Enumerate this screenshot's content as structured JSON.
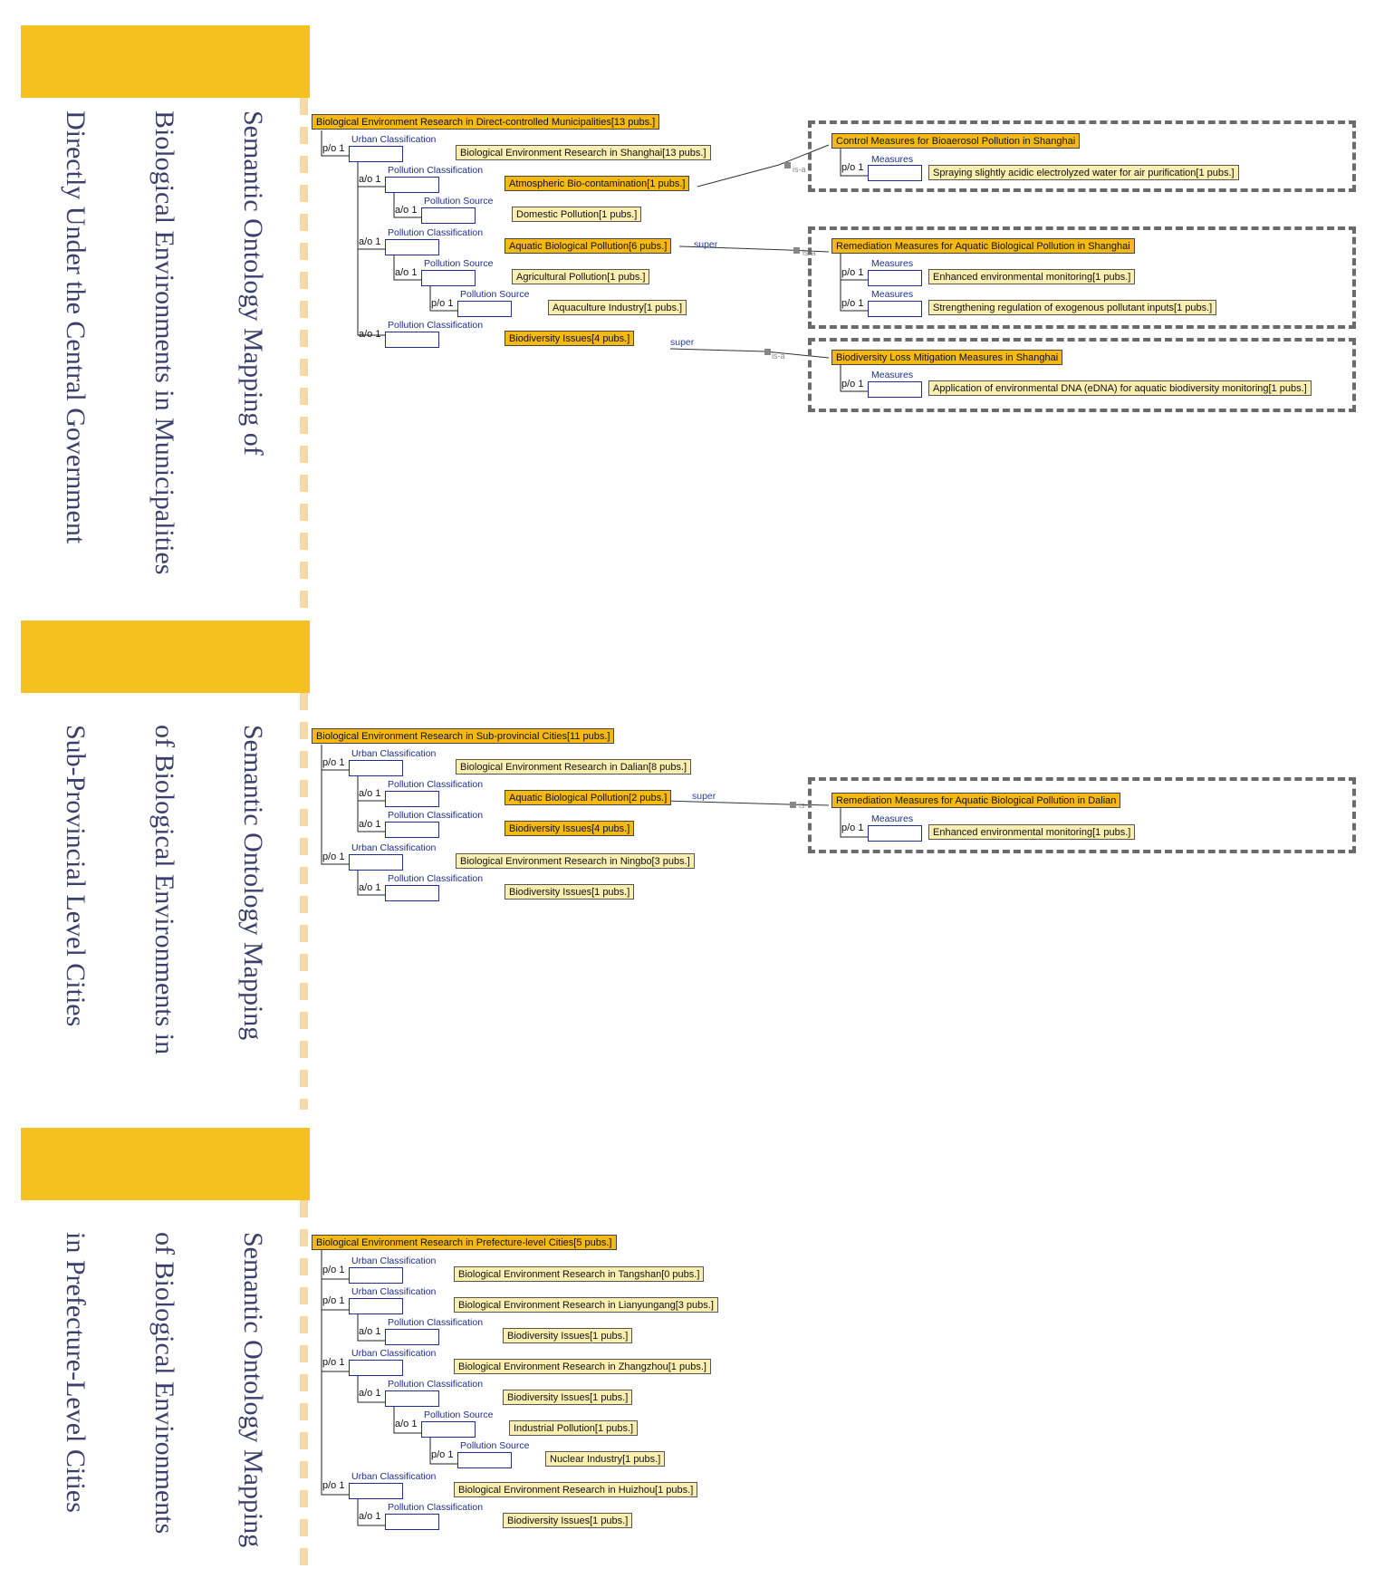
{
  "sections": [
    {
      "title_lines": [
        "Semantic Ontology Mapping of",
        "Biological Environments in Municipalities",
        "Directly Under the Central Government"
      ],
      "root": "Biological Environment Research in Direct-controlled Municipalities[13 pubs.]"
    },
    {
      "title_lines": [
        "Semantic Ontology Mapping",
        "of Biological Environments in",
        "Sub-Provincial Level Cities"
      ],
      "root": "Biological Environment Research in Sub-provincial Cities[11 pubs.]"
    },
    {
      "title_lines": [
        "Semantic Ontology Mapping",
        "of Biological Environments",
        "in Prefecture-Level Cities"
      ],
      "root": "Biological Environment Research in Prefecture-level Cities[5 pubs.]"
    }
  ],
  "labels": {
    "urban": "Urban Classification",
    "pollution_class": "Pollution Classification",
    "pollution_source": "Pollution Source",
    "measures": "Measures",
    "po": "p/o 1",
    "ao": "a/o 1",
    "super": "super",
    "isa": "is-a"
  },
  "nodes": {
    "shanghai": "Biological Environment Research in Shanghai[13 pubs.]",
    "atmos": "Atmospheric Bio-contamination[1 pubs.]",
    "domestic": "Domestic Pollution[1 pubs.]",
    "aquatic6": "Aquatic Biological Pollution[6 pubs.]",
    "agri": "Agricultural Pollution[1 pubs.]",
    "aquaculture": "Aquaculture Industry[1 pubs.]",
    "biod4": "Biodiversity Issues[4 pubs.]",
    "control": "Control Measures for Bioaerosol Pollution in Shanghai",
    "spraying": "Spraying slightly acidic electrolyzed water for air purification[1 pubs.]",
    "remed_sh": "Remediation Measures for Aquatic Biological Pollution in Shanghai",
    "enhanced": "Enhanced environmental monitoring[1 pubs.]",
    "strength": "Strengthening regulation of exogenous pollutant inputs[1 pubs.]",
    "biodloss": "Biodiversity Loss Mitigation Measures in Shanghai",
    "edna": "Application of environmental DNA (eDNA) for aquatic biodiversity monitoring[1 pubs.]",
    "dalian": "Biological Environment Research in Dalian[8 pubs.]",
    "aquatic2": "Aquatic Biological Pollution[2 pubs.]",
    "biod4b": "Biodiversity Issues[4 pubs.]",
    "ningbo": "Biological Environment Research in Ningbo[3 pubs.]",
    "biod1a": "Biodiversity Issues[1 pubs.]",
    "remed_dl": "Remediation Measures for Aquatic Biological Pollution in Dalian",
    "enhanced2": "Enhanced environmental monitoring[1 pubs.]",
    "tangshan": "Biological Environment Research in Tangshan[0 pubs.]",
    "lianyungang": "Biological Environment Research in Lianyungang[3 pubs.]",
    "biod1b": "Biodiversity Issues[1 pubs.]",
    "zhangzhou": "Biological Environment Research in Zhangzhou[1 pubs.]",
    "biod1c": "Biodiversity Issues[1 pubs.]",
    "industrial": "Industrial Pollution[1 pubs.]",
    "nuclear": "Nuclear Industry[1 pubs.]",
    "huizhou": "Biological Environment Research in Huizhou[1 pubs.]",
    "biod1d": "Biodiversity Issues[1 pubs.]"
  }
}
